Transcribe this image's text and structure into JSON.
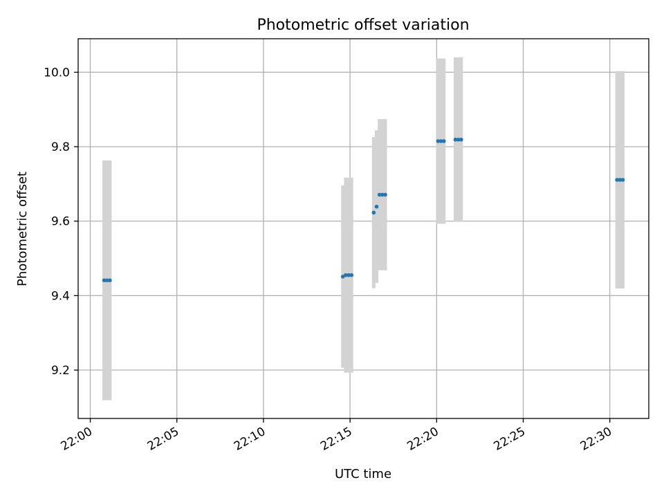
{
  "chart_data": {
    "type": "scatter",
    "title": "Photometric offset variation",
    "xlabel": "UTC time",
    "ylabel": "Photometric offset",
    "x_axis": {
      "kind": "time",
      "range": [
        "21:59:18",
        "22:32:15"
      ],
      "ticks": [
        "22:00",
        "22:05",
        "22:10",
        "22:15",
        "22:20",
        "22:25",
        "22:30"
      ]
    },
    "y_axis": {
      "range": [
        9.07,
        10.09
      ],
      "ticks": [
        "9.2",
        "9.4",
        "9.6",
        "9.8",
        "10.0"
      ]
    },
    "grid": true,
    "colors": {
      "points": "#1f77b4",
      "error_bars": "#d3d3d3",
      "grid": "#b0b0b0"
    },
    "series": [
      {
        "points": [
          {
            "t": "22:00:48",
            "y": 9.441,
            "err": 0.322
          },
          {
            "t": "22:00:58",
            "y": 9.441,
            "err": 0.322
          },
          {
            "t": "22:01:08",
            "y": 9.441,
            "err": 0.322
          },
          {
            "t": "22:14:35",
            "y": 9.451,
            "err": 0.245
          },
          {
            "t": "22:14:45",
            "y": 9.455,
            "err": 0.262
          },
          {
            "t": "22:14:55",
            "y": 9.455,
            "err": 0.262
          },
          {
            "t": "22:15:05",
            "y": 9.455,
            "err": 0.262
          },
          {
            "t": "22:16:22",
            "y": 9.623,
            "err": 0.203
          },
          {
            "t": "22:16:32",
            "y": 9.639,
            "err": 0.205
          },
          {
            "t": "22:16:42",
            "y": 9.671,
            "err": 0.203
          },
          {
            "t": "22:16:52",
            "y": 9.671,
            "err": 0.203
          },
          {
            "t": "22:17:02",
            "y": 9.671,
            "err": 0.203
          },
          {
            "t": "22:20:05",
            "y": 9.815,
            "err": 0.222
          },
          {
            "t": "22:20:15",
            "y": 9.815,
            "err": 0.222
          },
          {
            "t": "22:20:25",
            "y": 9.815,
            "err": 0.222
          },
          {
            "t": "22:21:05",
            "y": 9.819,
            "err": 0.221
          },
          {
            "t": "22:21:15",
            "y": 9.819,
            "err": 0.221
          },
          {
            "t": "22:21:25",
            "y": 9.819,
            "err": 0.221
          },
          {
            "t": "22:30:25",
            "y": 9.711,
            "err": 0.292
          },
          {
            "t": "22:30:35",
            "y": 9.711,
            "err": 0.292
          },
          {
            "t": "22:30:45",
            "y": 9.711,
            "err": 0.292
          }
        ]
      }
    ]
  }
}
